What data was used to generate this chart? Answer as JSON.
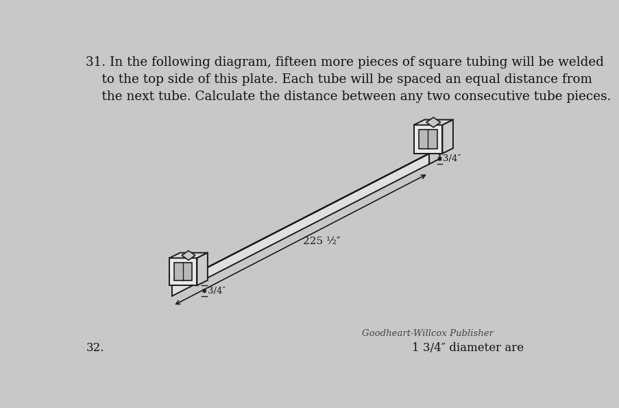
{
  "background_color": "#c8c8c8",
  "title_text": "31. In the following diagram, fifteen more pieces of square tubing will be welded\n    to the top side of this plate. Each tube will be spaced an equal distance from\n    the next tube. Calculate the distance between any two consecutive tube pieces.",
  "title_fontsize": 13.2,
  "publisher_text": "Goodheart-Willcox Publisher",
  "publisher_fontsize": 10,
  "bottom_text": "1 3/4″ diameter are",
  "bottom_num": "32.",
  "label_225": "225 ½″",
  "label_3_4_left": "3/4″",
  "label_3_4_right": "3/4″",
  "line_color": "#1a1a1a",
  "lw": 1.4
}
